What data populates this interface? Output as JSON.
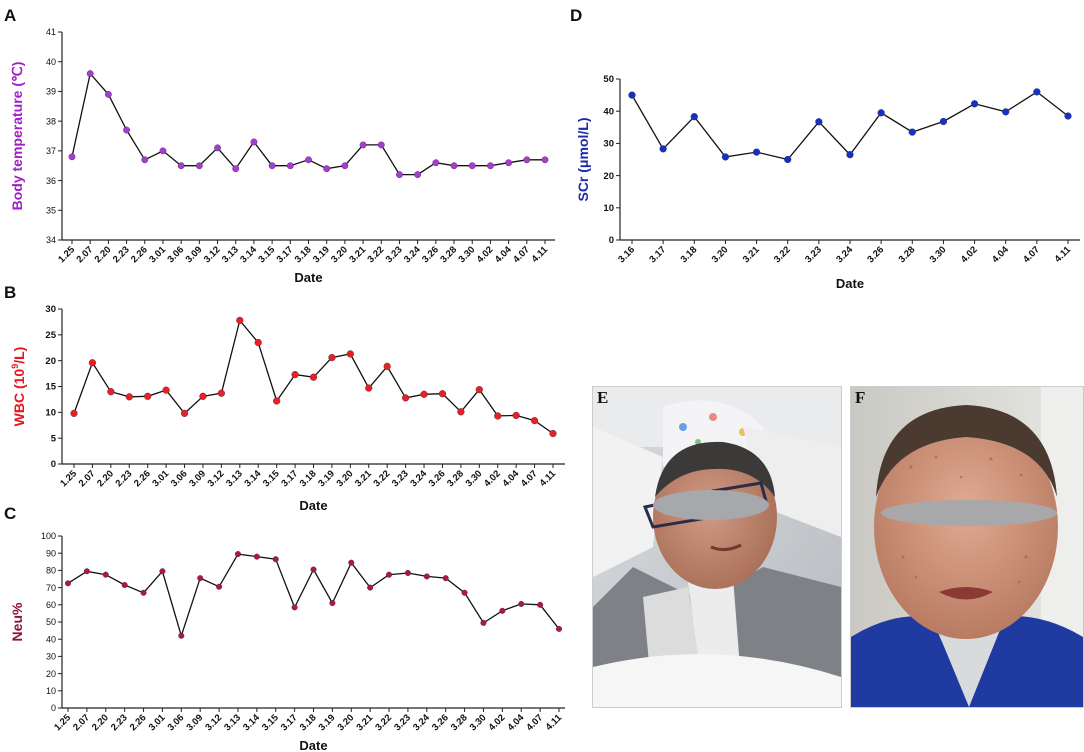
{
  "chart_data": [
    {
      "panel": "A",
      "type": "line",
      "title": "",
      "xlabel": "Date",
      "ylabel": "Body temperature (℃)",
      "ylabel_color": "#a020c8",
      "marker_color": "#a83ad8",
      "ylim": [
        34,
        41
      ],
      "yticks": [
        34,
        35,
        36,
        37,
        38,
        39,
        40,
        41
      ],
      "categories": [
        "1.25",
        "2.07",
        "2.20",
        "2.23",
        "2.26",
        "3.01",
        "3.06",
        "3.09",
        "3.12",
        "3.13",
        "3.14",
        "3.15",
        "3.17",
        "3.18",
        "3.19",
        "3.20",
        "3.21",
        "3.22",
        "3.23",
        "3.24",
        "3.26",
        "3.28",
        "3.30",
        "4.02",
        "4.04",
        "4.07",
        "4.11"
      ],
      "values": [
        36.8,
        39.6,
        38.9,
        37.7,
        36.7,
        37.0,
        36.5,
        36.5,
        37.1,
        36.4,
        37.3,
        36.5,
        36.5,
        36.7,
        36.4,
        36.5,
        37.2,
        37.2,
        36.2,
        36.2,
        36.6,
        36.5,
        36.5,
        36.5,
        36.6,
        36.7,
        36.7
      ]
    },
    {
      "panel": "B",
      "type": "line",
      "title": "",
      "xlabel": "Date",
      "ylabel_main": "WBC (10",
      "ylabel_sup": "9",
      "ylabel_tail": "/L)",
      "ylabel_color": "#e8141b",
      "marker_color": "#ee1c24",
      "ylim": [
        0,
        30
      ],
      "yticks": [
        0,
        5,
        10,
        15,
        20,
        25,
        30
      ],
      "categories": [
        "1.25",
        "2.07",
        "2.20",
        "2.23",
        "2.26",
        "3.01",
        "3.06",
        "3.09",
        "3.12",
        "3.13",
        "3.14",
        "3.15",
        "3.17",
        "3.18",
        "3.19",
        "3.20",
        "3.21",
        "3.22",
        "3.23",
        "3.24",
        "3.26",
        "3.28",
        "3.30",
        "4.02",
        "4.04",
        "4.07",
        "4.11"
      ],
      "values": [
        9.8,
        19.6,
        14.0,
        13.0,
        13.1,
        14.3,
        9.8,
        13.1,
        13.7,
        27.8,
        23.5,
        12.2,
        17.3,
        16.8,
        20.6,
        21.3,
        14.7,
        18.9,
        12.8,
        13.5,
        13.6,
        10.1,
        14.4,
        9.3,
        9.4,
        8.4,
        5.9
      ]
    },
    {
      "panel": "C",
      "type": "line",
      "title": "",
      "xlabel": "Date",
      "ylabel": "Neu%",
      "ylabel_color": "#8a1538",
      "marker_color": "#b0154a",
      "ylim": [
        0,
        100
      ],
      "yticks": [
        0,
        10,
        20,
        30,
        40,
        50,
        60,
        70,
        80,
        90,
        100
      ],
      "categories": [
        "1.25",
        "2.07",
        "2.20",
        "2.23",
        "2.26",
        "3.01",
        "3.06",
        "3.09",
        "3.12",
        "3.13",
        "3.14",
        "3.15",
        "3.17",
        "3.18",
        "3.19",
        "3.20",
        "3.21",
        "3.22",
        "3.23",
        "3.24",
        "3.26",
        "3.28",
        "3.30",
        "4.02",
        "4.04",
        "4.07",
        "4.11"
      ],
      "values": [
        72.5,
        79.5,
        77.5,
        71.5,
        67.0,
        79.5,
        42.0,
        75.5,
        70.5,
        89.5,
        88.0,
        86.5,
        58.5,
        80.5,
        61.0,
        84.5,
        70.0,
        77.5,
        78.5,
        76.5,
        75.5,
        67.0,
        49.5,
        56.5,
        60.5,
        60.0,
        46.0
      ]
    },
    {
      "panel": "D",
      "type": "line",
      "title": "",
      "xlabel": "Date",
      "ylabel": "SCr (μmol/L)",
      "ylabel_color": "#1a2aa8",
      "marker_color": "#1530c8",
      "ylim": [
        0,
        50
      ],
      "yticks": [
        0,
        10,
        20,
        30,
        40,
        50
      ],
      "categories": [
        "3.16",
        "3.17",
        "3.18",
        "3.20",
        "3.21",
        "3.22",
        "3.23",
        "3.24",
        "3.26",
        "3.28",
        "3.30",
        "4.02",
        "4.04",
        "4.07",
        "4.11"
      ],
      "values": [
        45.0,
        28.3,
        38.3,
        25.8,
        27.3,
        25.0,
        36.7,
        26.5,
        39.5,
        33.5,
        36.8,
        42.3,
        39.8,
        46.0,
        38.5
      ]
    }
  ],
  "photos": {
    "e_letter": "E",
    "f_letter": "F"
  }
}
